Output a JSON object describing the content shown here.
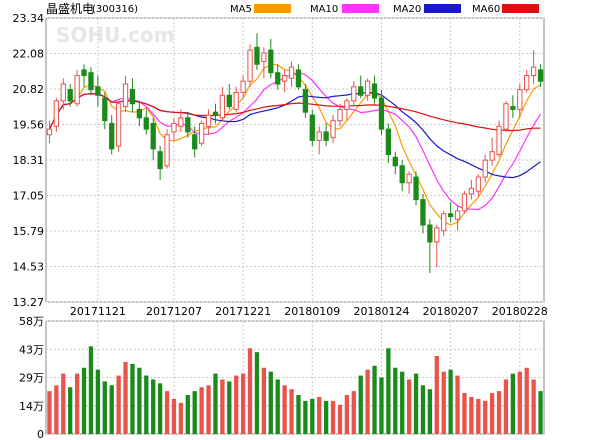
{
  "header": {
    "title": "晶盛机电",
    "code": "(300316)",
    "watermark": "SOHU.com"
  },
  "chart_data": [
    {
      "type": "candlestick",
      "title": "晶盛机电(300316)",
      "ylim": [
        13.27,
        23.34
      ],
      "y_ticks": [
        "23.34",
        "22.08",
        "20.82",
        "19.56",
        "18.31",
        "17.05",
        "15.79",
        "14.53",
        "13.27"
      ],
      "x_ticks": [
        "20171121",
        "20171207",
        "20171221",
        "20180109",
        "20180124",
        "20180207",
        "20180228"
      ],
      "x_tick_index": [
        7,
        18,
        28,
        38,
        48,
        58,
        68
      ],
      "grid": true,
      "up_color": "#e8534a",
      "down_color": "#1a8a1a",
      "legend": [
        {
          "name": "MA5",
          "color": "#ff9900"
        },
        {
          "name": "MA10",
          "color": "#ff33ff"
        },
        {
          "name": "MA20",
          "color": "#1a1acc"
        },
        {
          "name": "MA60",
          "color": "#dd1111"
        }
      ],
      "candles": [
        [
          19.2,
          19.7,
          18.9,
          19.4
        ],
        [
          19.5,
          20.5,
          19.3,
          20.4
        ],
        [
          20.4,
          21.2,
          20.1,
          21.0
        ],
        [
          20.8,
          21.0,
          20.2,
          20.4
        ],
        [
          20.3,
          21.5,
          20.2,
          21.3
        ],
        [
          21.5,
          21.7,
          20.9,
          21.3
        ],
        [
          21.4,
          21.6,
          20.6,
          20.8
        ],
        [
          20.9,
          21.3,
          20.2,
          20.6
        ],
        [
          20.5,
          20.7,
          19.4,
          19.7
        ],
        [
          19.6,
          19.9,
          18.5,
          18.7
        ],
        [
          18.8,
          20.4,
          18.6,
          20.3
        ],
        [
          20.2,
          21.3,
          20.0,
          21.0
        ],
        [
          20.8,
          21.2,
          20.0,
          20.3
        ],
        [
          20.1,
          20.4,
          19.5,
          19.8
        ],
        [
          19.8,
          20.1,
          19.2,
          19.4
        ],
        [
          19.6,
          19.8,
          18.3,
          18.7
        ],
        [
          18.6,
          18.8,
          17.6,
          18.0
        ],
        [
          18.1,
          19.4,
          18.0,
          19.2
        ],
        [
          19.3,
          19.8,
          19.0,
          19.6
        ],
        [
          19.5,
          20.1,
          19.3,
          19.8
        ],
        [
          19.8,
          20.0,
          19.1,
          19.3
        ],
        [
          19.2,
          19.5,
          18.4,
          18.7
        ],
        [
          18.9,
          19.7,
          18.8,
          19.6
        ],
        [
          19.5,
          20.1,
          19.2,
          19.9
        ],
        [
          20.0,
          20.3,
          19.6,
          19.9
        ],
        [
          19.8,
          20.9,
          19.7,
          20.6
        ],
        [
          20.6,
          21.0,
          20.1,
          20.2
        ],
        [
          20.1,
          20.9,
          20.0,
          20.7
        ],
        [
          20.7,
          21.3,
          20.5,
          21.1
        ],
        [
          21.1,
          22.4,
          20.9,
          22.2
        ],
        [
          22.3,
          22.8,
          21.5,
          21.7
        ],
        [
          21.8,
          22.3,
          21.2,
          22.1
        ],
        [
          22.2,
          22.6,
          21.2,
          21.4
        ],
        [
          21.4,
          21.7,
          20.8,
          21.0
        ],
        [
          21.1,
          21.5,
          20.7,
          21.3
        ],
        [
          21.2,
          21.8,
          20.9,
          21.6
        ],
        [
          21.5,
          21.7,
          20.8,
          20.9
        ],
        [
          20.8,
          21.0,
          19.8,
          20.0
        ],
        [
          19.9,
          20.1,
          18.8,
          19.0
        ],
        [
          19.0,
          19.5,
          18.5,
          19.3
        ],
        [
          19.3,
          19.6,
          18.8,
          19.0
        ],
        [
          19.1,
          19.9,
          18.9,
          19.7
        ],
        [
          19.7,
          20.3,
          19.5,
          20.1
        ],
        [
          20.1,
          20.5,
          19.7,
          20.4
        ],
        [
          20.4,
          21.1,
          20.2,
          20.9
        ],
        [
          20.9,
          21.3,
          20.5,
          20.6
        ],
        [
          20.6,
          21.2,
          20.4,
          21.1
        ],
        [
          21.0,
          21.3,
          20.3,
          20.5
        ],
        [
          20.5,
          20.8,
          19.2,
          19.4
        ],
        [
          19.4,
          19.6,
          18.2,
          18.5
        ],
        [
          18.4,
          18.6,
          17.8,
          18.1
        ],
        [
          18.1,
          18.3,
          17.2,
          17.5
        ],
        [
          17.5,
          17.9,
          17.1,
          17.8
        ],
        [
          17.7,
          17.9,
          16.7,
          16.9
        ],
        [
          16.9,
          17.1,
          15.7,
          16.0
        ],
        [
          16.0,
          16.2,
          14.3,
          15.4
        ],
        [
          15.4,
          16.0,
          14.5,
          15.9
        ],
        [
          15.8,
          16.5,
          15.6,
          16.4
        ],
        [
          16.4,
          16.8,
          16.1,
          16.3
        ],
        [
          16.2,
          16.7,
          15.8,
          16.5
        ],
        [
          16.5,
          17.2,
          16.4,
          17.1
        ],
        [
          17.1,
          17.6,
          16.9,
          17.3
        ],
        [
          17.2,
          17.8,
          17.0,
          17.7
        ],
        [
          17.7,
          18.5,
          17.5,
          18.3
        ],
        [
          18.3,
          19.1,
          18.1,
          18.6
        ],
        [
          18.5,
          19.7,
          18.4,
          19.5
        ],
        [
          19.4,
          20.4,
          19.3,
          20.3
        ],
        [
          20.2,
          20.6,
          19.8,
          20.1
        ],
        [
          20.1,
          21.0,
          19.8,
          20.8
        ],
        [
          20.8,
          21.5,
          20.7,
          21.3
        ],
        [
          21.3,
          22.2,
          21.0,
          21.6
        ],
        [
          21.5,
          21.7,
          20.9,
          21.1
        ]
      ]
    },
    {
      "type": "bar",
      "ylim": [
        0,
        58
      ],
      "y_ticks": [
        "58万",
        "43万",
        "29万",
        "14万",
        "0"
      ],
      "values": [
        22,
        25,
        31,
        24,
        31,
        34,
        45,
        33,
        27,
        25,
        30,
        37,
        36,
        34,
        30,
        28,
        26,
        22,
        18,
        16,
        20,
        22,
        24,
        25,
        31,
        28,
        27,
        30,
        31,
        44,
        42,
        34,
        32,
        28,
        25,
        23,
        20,
        17,
        18,
        19,
        17,
        17,
        15,
        20,
        22,
        30,
        33,
        35,
        29,
        44,
        34,
        32,
        28,
        31,
        25,
        23,
        40,
        32,
        33,
        30,
        21,
        19,
        18,
        17,
        21,
        22,
        28,
        31,
        32,
        34,
        28,
        22
      ]
    }
  ]
}
